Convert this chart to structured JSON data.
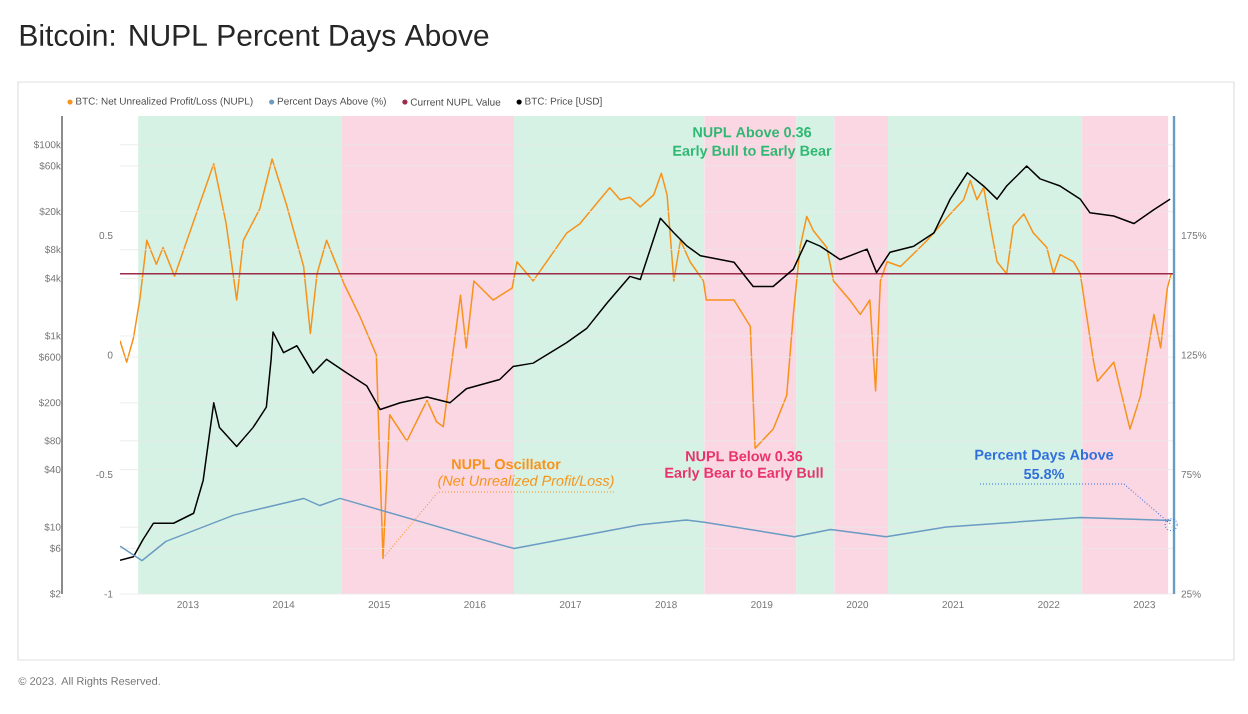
{
  "chart_data": {
    "type": "line",
    "title": "Bitcoin: NUPL Percent Days Above",
    "xlim": [
      2012.29,
      2023.31
    ],
    "xticks": [
      2013,
      2014,
      2015,
      2016,
      2017,
      2018,
      2019,
      2020,
      2021,
      2022,
      2023
    ],
    "ylim": [
      -1,
      1
    ],
    "yticks": [
      -1,
      -0.5,
      0,
      0.5
    ],
    "y2lim": [
      25,
      225
    ],
    "y2ticks": [
      {
        "value": 25,
        "label": "25%"
      },
      {
        "value": 75,
        "label": "75%"
      },
      {
        "value": 125,
        "label": "125%"
      },
      {
        "value": 175,
        "label": "175%"
      }
    ],
    "y3lim": [
      2,
      200000
    ],
    "y3ticks": [
      {
        "value": 2,
        "label": "$2"
      },
      {
        "value": 6,
        "label": "$6"
      },
      {
        "value": 10,
        "label": "$10"
      },
      {
        "value": 40,
        "label": "$40"
      },
      {
        "value": 80,
        "label": "$80"
      },
      {
        "value": 200,
        "label": "$200"
      },
      {
        "value": 600,
        "label": "$600"
      },
      {
        "value": 1000,
        "label": "$1k"
      },
      {
        "value": 4000,
        "label": "$4k"
      },
      {
        "value": 8000,
        "label": "$8k"
      },
      {
        "value": 20000,
        "label": "$20k"
      },
      {
        "value": 60000,
        "label": "$60k"
      },
      {
        "value": 100000,
        "label": "$100k"
      }
    ],
    "log": "y3",
    "grid": "y",
    "legend": "top",
    "series": [
      {
        "name": "BTC: Net Unrealized Profit/Loss (NUPL)",
        "color": "#f7931a",
        "x": [
          2012.29,
          2012.36,
          2012.43,
          2012.5,
          2012.57,
          2012.67,
          2012.74,
          2012.86,
          2013.06,
          2013.27,
          2013.4,
          2013.51,
          2013.58,
          2013.75,
          2013.88,
          2014.03,
          2014.21,
          2014.28,
          2014.35,
          2014.45,
          2014.63,
          2014.8,
          2014.97,
          2015.04,
          2015.11,
          2015.29,
          2015.5,
          2015.6,
          2015.67,
          2015.85,
          2015.91,
          2015.99,
          2016.19,
          2016.39,
          2016.44,
          2016.61,
          2016.96,
          2017.1,
          2017.41,
          2017.52,
          2017.62,
          2017.73,
          2017.87,
          2017.95,
          2018.01,
          2018.08,
          2018.15,
          2018.25,
          2018.39,
          2018.42,
          2018.71,
          2018.88,
          2018.93,
          2019.12,
          2019.26,
          2019.33,
          2019.4,
          2019.47,
          2019.54,
          2019.68,
          2019.75,
          2019.92,
          2020.03,
          2020.13,
          2020.19,
          2020.24,
          2020.31,
          2020.45,
          2020.73,
          2020.97,
          2021.11,
          2021.18,
          2021.25,
          2021.32,
          2021.39,
          2021.46,
          2021.56,
          2021.63,
          2021.74,
          2021.84,
          2021.98,
          2022.05,
          2022.12,
          2022.26,
          2022.33,
          2022.47,
          2022.51,
          2022.68,
          2022.85,
          2022.96,
          2023.1,
          2023.17,
          2023.24,
          2023.28
        ],
        "values": [
          0.06,
          -0.03,
          0.07,
          0.24,
          0.48,
          0.38,
          0.45,
          0.33,
          0.56,
          0.8,
          0.55,
          0.23,
          0.48,
          0.61,
          0.82,
          0.63,
          0.37,
          0.09,
          0.34,
          0.48,
          0.3,
          0.16,
          0,
          -0.85,
          -0.25,
          -0.36,
          -0.19,
          -0.28,
          -0.3,
          0.25,
          0.03,
          0.31,
          0.23,
          0.28,
          0.39,
          0.31,
          0.51,
          0.55,
          0.7,
          0.65,
          0.66,
          0.62,
          0.67,
          0.76,
          0.67,
          0.31,
          0.48,
          0.39,
          0.31,
          0.23,
          0.23,
          0.12,
          -0.39,
          -0.31,
          -0.17,
          0.17,
          0.45,
          0.58,
          0.52,
          0.45,
          0.31,
          0.23,
          0.17,
          0.23,
          -0.15,
          0.31,
          0.39,
          0.37,
          0.48,
          0.59,
          0.65,
          0.73,
          0.65,
          0.7,
          0.54,
          0.39,
          0.34,
          0.54,
          0.59,
          0.51,
          0.45,
          0.34,
          0.42,
          0.39,
          0.34,
          -0.03,
          -0.11,
          -0.03,
          -0.31,
          -0.17,
          0.17,
          0.03,
          0.28,
          0.34
        ]
      },
      {
        "name": "Percent Days Above (%)",
        "color": "#6a9bc3",
        "axis": "y2",
        "x": [
          2012.29,
          2012.52,
          2012.77,
          2013.48,
          2014.21,
          2014.38,
          2014.59,
          2016.41,
          2017.73,
          2018.21,
          2018.4,
          2019.34,
          2019.72,
          2020.3,
          2020.93,
          2022.33,
          2023.28
        ],
        "values": [
          45,
          39,
          47,
          58,
          65,
          62,
          65,
          44,
          54,
          56,
          55,
          49,
          52,
          49,
          53,
          57,
          55.8
        ]
      },
      {
        "name": "Current NUPL Value",
        "color": "#9e2a4b",
        "x": [
          2012.29,
          2023.31
        ],
        "values": [
          0.34,
          0.34
        ]
      },
      {
        "name": "BTC: Price [USD]",
        "color": "#000000",
        "axis": "y3",
        "x": [
          2012.29,
          2012.43,
          2012.53,
          2012.64,
          2012.85,
          2013.06,
          2013.16,
          2013.27,
          2013.33,
          2013.51,
          2013.68,
          2013.82,
          2013.87,
          2013.89,
          2014.0,
          2014.14,
          2014.31,
          2014.45,
          2014.66,
          2014.87,
          2015.01,
          2015.22,
          2015.5,
          2015.74,
          2015.91,
          2016.26,
          2016.4,
          2016.61,
          2016.96,
          2017.17,
          2017.38,
          2017.62,
          2017.73,
          2017.94,
          2018.08,
          2018.22,
          2018.36,
          2018.71,
          2018.91,
          2019.12,
          2019.33,
          2019.47,
          2019.61,
          2019.82,
          2020.1,
          2020.2,
          2020.34,
          2020.59,
          2020.8,
          2020.97,
          2021.15,
          2021.32,
          2021.46,
          2021.56,
          2021.77,
          2021.91,
          2022.12,
          2022.33,
          2022.43,
          2022.68,
          2022.89,
          2023.1,
          2023.27
        ],
        "values": [
          4.5,
          4.9,
          7.4,
          11,
          11,
          14,
          31,
          200,
          110,
          70,
          110,
          180,
          570,
          1100,
          670,
          790,
          410,
          570,
          410,
          300,
          170,
          200,
          230,
          200,
          280,
          350,
          480,
          520,
          850,
          1200,
          2200,
          4200,
          3900,
          17000,
          12000,
          8700,
          6900,
          5900,
          3300,
          3300,
          5000,
          10000,
          8700,
          6300,
          8100,
          4600,
          7500,
          8700,
          12000,
          27000,
          51000,
          37000,
          27000,
          37000,
          60000,
          44000,
          37000,
          27000,
          19500,
          18000,
          15000,
          21000,
          27000
        ]
      }
    ],
    "bands": [
      {
        "axis": "x",
        "from": 2012.48,
        "to": 2014.61,
        "color": "#d6f2e4"
      },
      {
        "axis": "x",
        "from": 2014.61,
        "to": 2016.41,
        "color": "#fbd6e3"
      },
      {
        "axis": "x",
        "from": 2016.41,
        "to": 2018.4,
        "color": "#d6f2e4"
      },
      {
        "axis": "x",
        "from": 2018.4,
        "to": 2019.36,
        "color": "#fbd6e3"
      },
      {
        "axis": "x",
        "from": 2019.36,
        "to": 2019.76,
        "color": "#d6f2e4"
      },
      {
        "axis": "x",
        "from": 2019.76,
        "to": 2020.32,
        "color": "#fbd6e3"
      },
      {
        "axis": "x",
        "from": 2020.32,
        "to": 2022.35,
        "color": "#d6f2e4"
      },
      {
        "axis": "x",
        "from": 2022.35,
        "to": 2023.25,
        "color": "#fbd6e3"
      }
    ],
    "annotations": [
      "NUPL Above 0.36",
      "Early Bull to Early Bear",
      "NUPL Below 0.36",
      "Early Bear to Early Bull",
      "NUPL Oscillator",
      {
        "text": "(Net Unrealized Profit/Loss)",
        "x": 2015.04,
        "y": -0.85
      },
      "Percent Days Above",
      {
        "text": "55.8%",
        "x": 2023.28,
        "y": -0.71
      },
      "© 2023. All Rights Reserved."
    ]
  }
}
